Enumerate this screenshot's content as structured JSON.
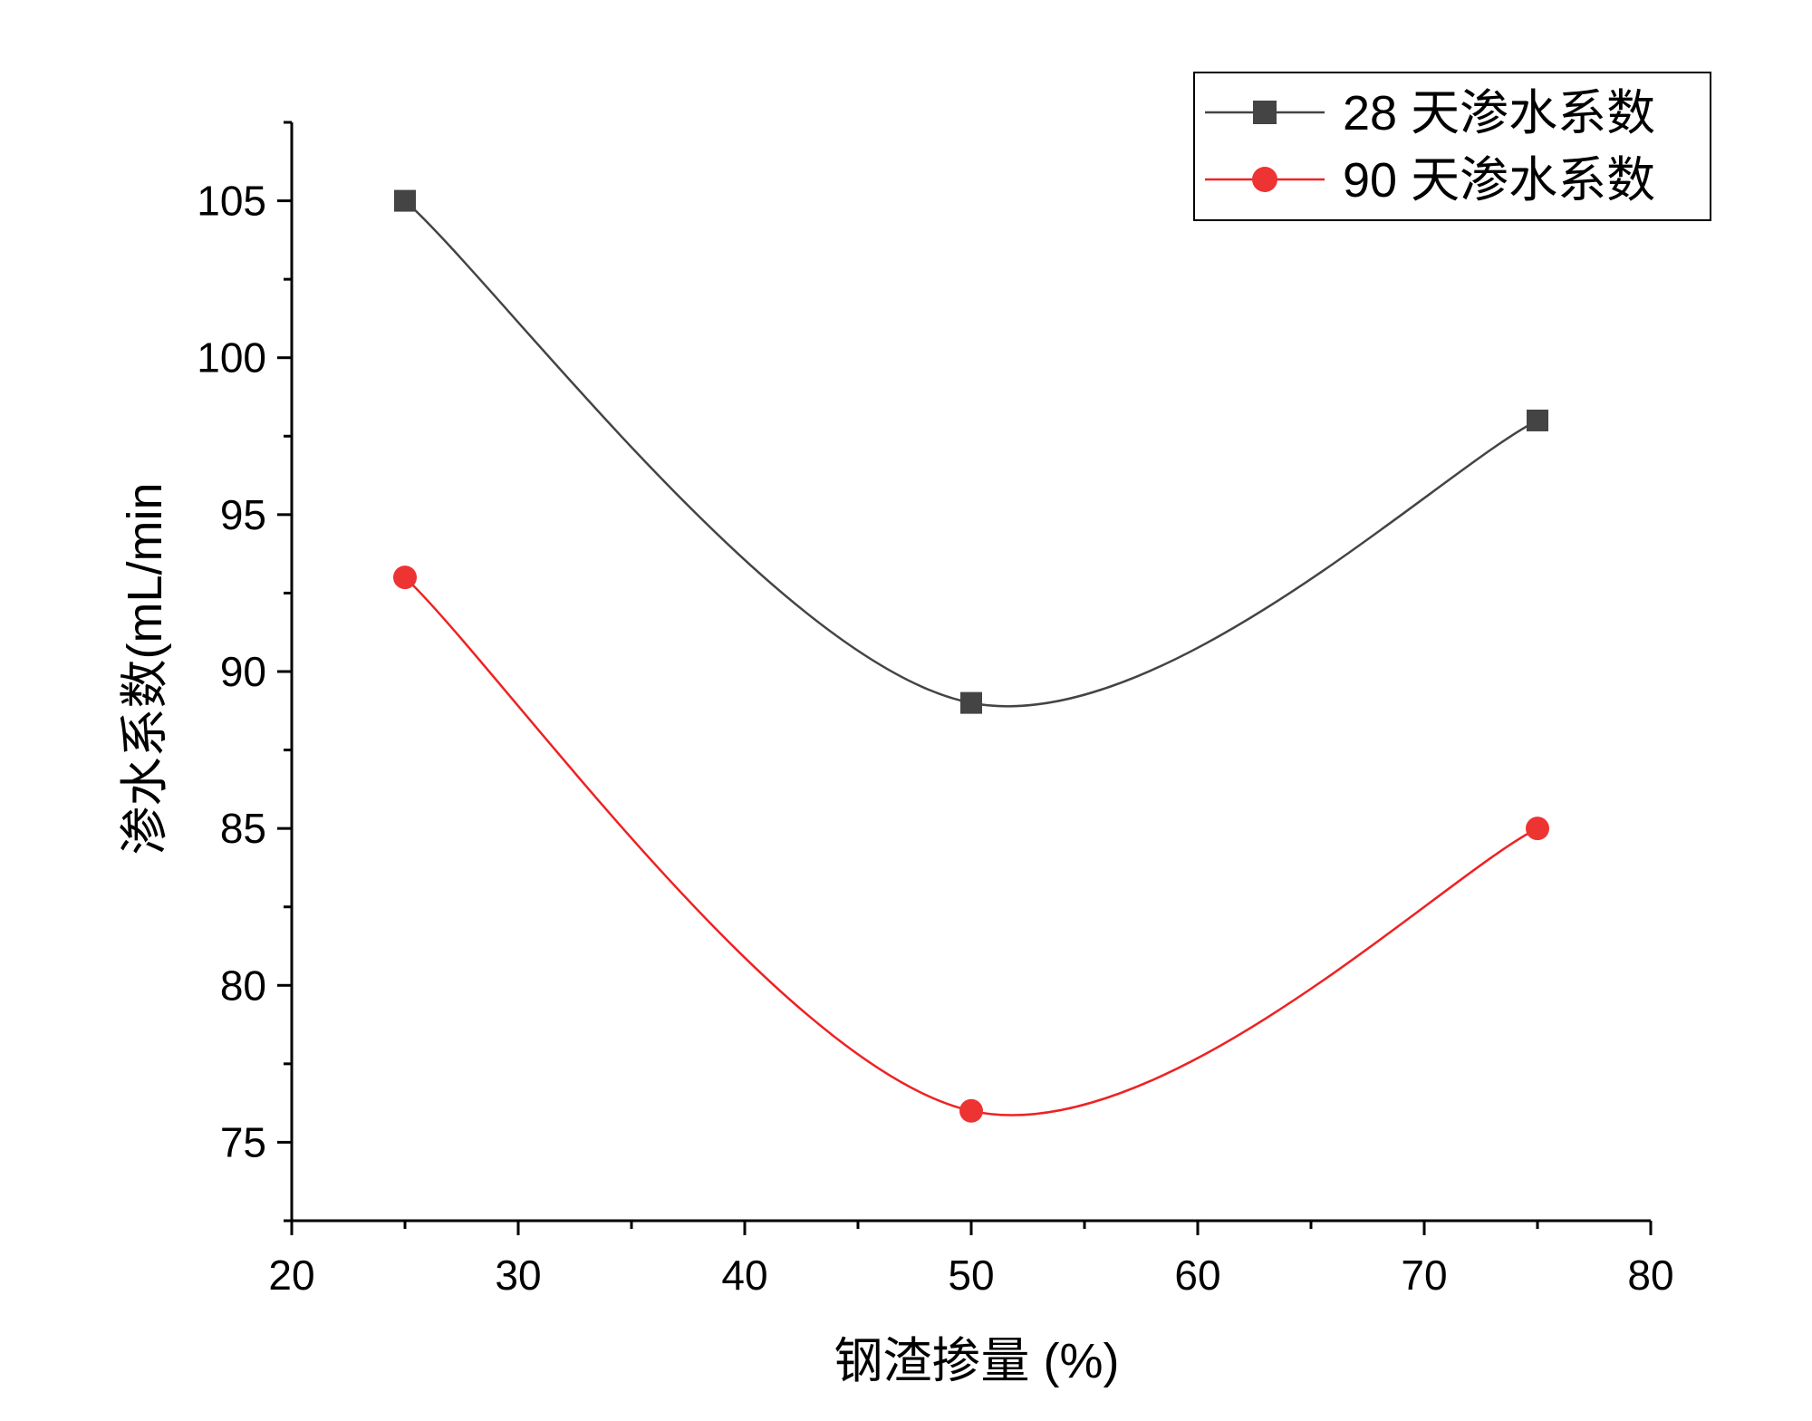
{
  "chart_data": {
    "type": "line",
    "xlabel": "钢渣掺量 (%)",
    "ylabel": "渗水系数(mL/min",
    "xlim": [
      20,
      80
    ],
    "ylim": [
      72.5,
      107.5
    ],
    "x_ticks": [
      20,
      30,
      40,
      50,
      60,
      70,
      80
    ],
    "y_ticks": [
      75,
      80,
      85,
      90,
      95,
      100,
      105
    ],
    "grid": false,
    "legend_position": "top-right",
    "x": [
      25,
      50,
      75
    ],
    "series": [
      {
        "name": "28 天渗水系数",
        "marker": "square",
        "color": "#444444",
        "marker_color": "#444444",
        "values": [
          105,
          89,
          98
        ]
      },
      {
        "name": "90 天渗水系数",
        "marker": "circle",
        "color": "#ee2222",
        "marker_color": "#ee3333",
        "values": [
          93,
          76,
          85
        ]
      }
    ]
  }
}
